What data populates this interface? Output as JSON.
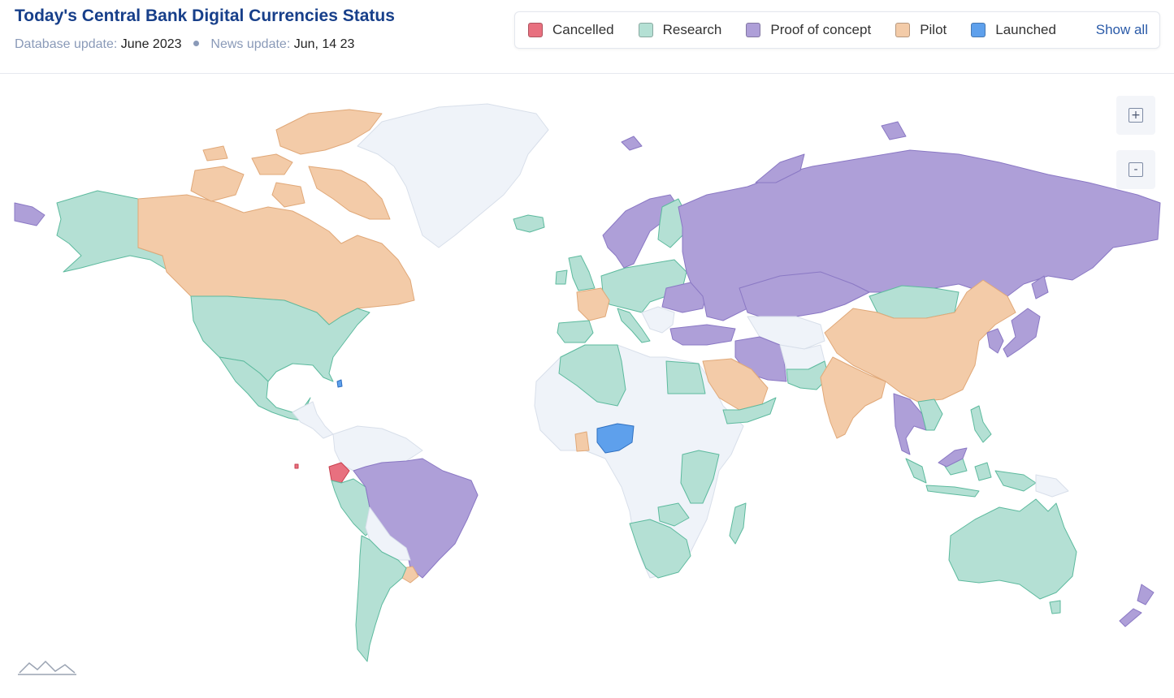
{
  "header": {
    "title": "Today's Central Bank Digital Currencies Status",
    "database_label": "Database update:",
    "database_value": "June 2023",
    "news_label": "News update:",
    "news_value": "Jun, 14 23"
  },
  "legend": {
    "items": [
      {
        "label": "Cancelled",
        "color": "#e8707f"
      },
      {
        "label": "Research",
        "color": "#b4e0d4"
      },
      {
        "label": "Proof of concept",
        "color": "#ae9fd8"
      },
      {
        "label": "Pilot",
        "color": "#f3cba8"
      },
      {
        "label": "Launched",
        "color": "#5ea0ec"
      }
    ],
    "show_all": "Show all"
  },
  "map_colors": {
    "none": "#eff3f9",
    "cancelled": "#e8707f",
    "research": "#b4e0d4",
    "poc": "#ae9fd8",
    "pilot": "#f3cba8",
    "launched": "#5ea0ec"
  },
  "zoom": {
    "in_label": "+",
    "out_label": "-"
  },
  "icons": {
    "zoom_in": "plus-icon",
    "zoom_out": "minus-icon",
    "logo": "mountain-logo-icon"
  }
}
